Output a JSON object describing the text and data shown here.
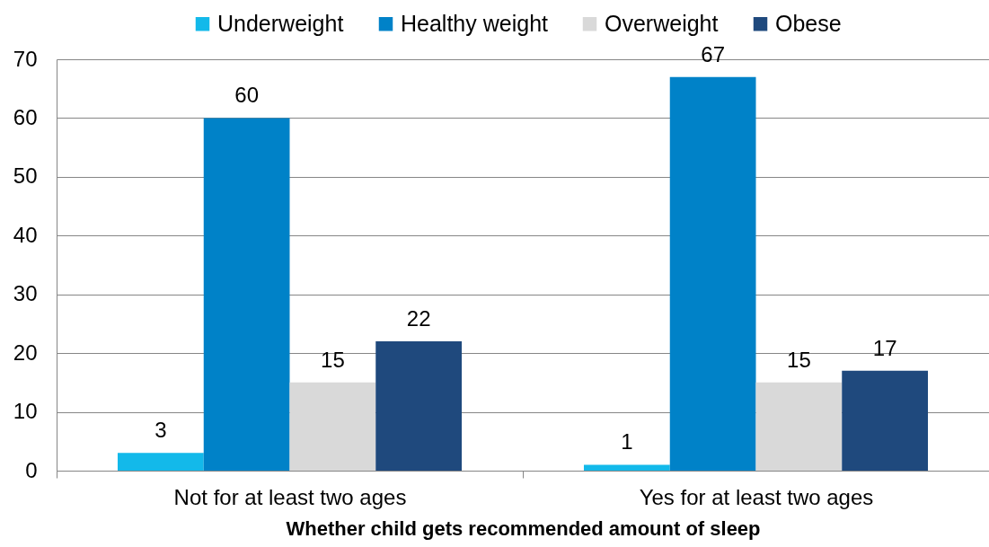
{
  "chart_data": {
    "type": "bar",
    "xlabel": "Whether child gets recommended amount of sleep",
    "categories": [
      "Not for at least two ages",
      "Yes for at least two ages"
    ],
    "series": [
      {
        "name": "Underweight",
        "color": "#13b9ea",
        "values": [
          3,
          1
        ]
      },
      {
        "name": "Healthy weight",
        "color": "#0082c8",
        "values": [
          60,
          67
        ]
      },
      {
        "name": "Overweight",
        "color": "#d9d9d9",
        "values": [
          15,
          15
        ]
      },
      {
        "name": "Obese",
        "color": "#1f497d",
        "values": [
          22,
          17
        ]
      }
    ],
    "ylim": [
      0,
      70
    ],
    "yticks": [
      0,
      10,
      20,
      30,
      40,
      50,
      60,
      70
    ],
    "grid": "y",
    "legend": "top",
    "data_labels": true
  }
}
